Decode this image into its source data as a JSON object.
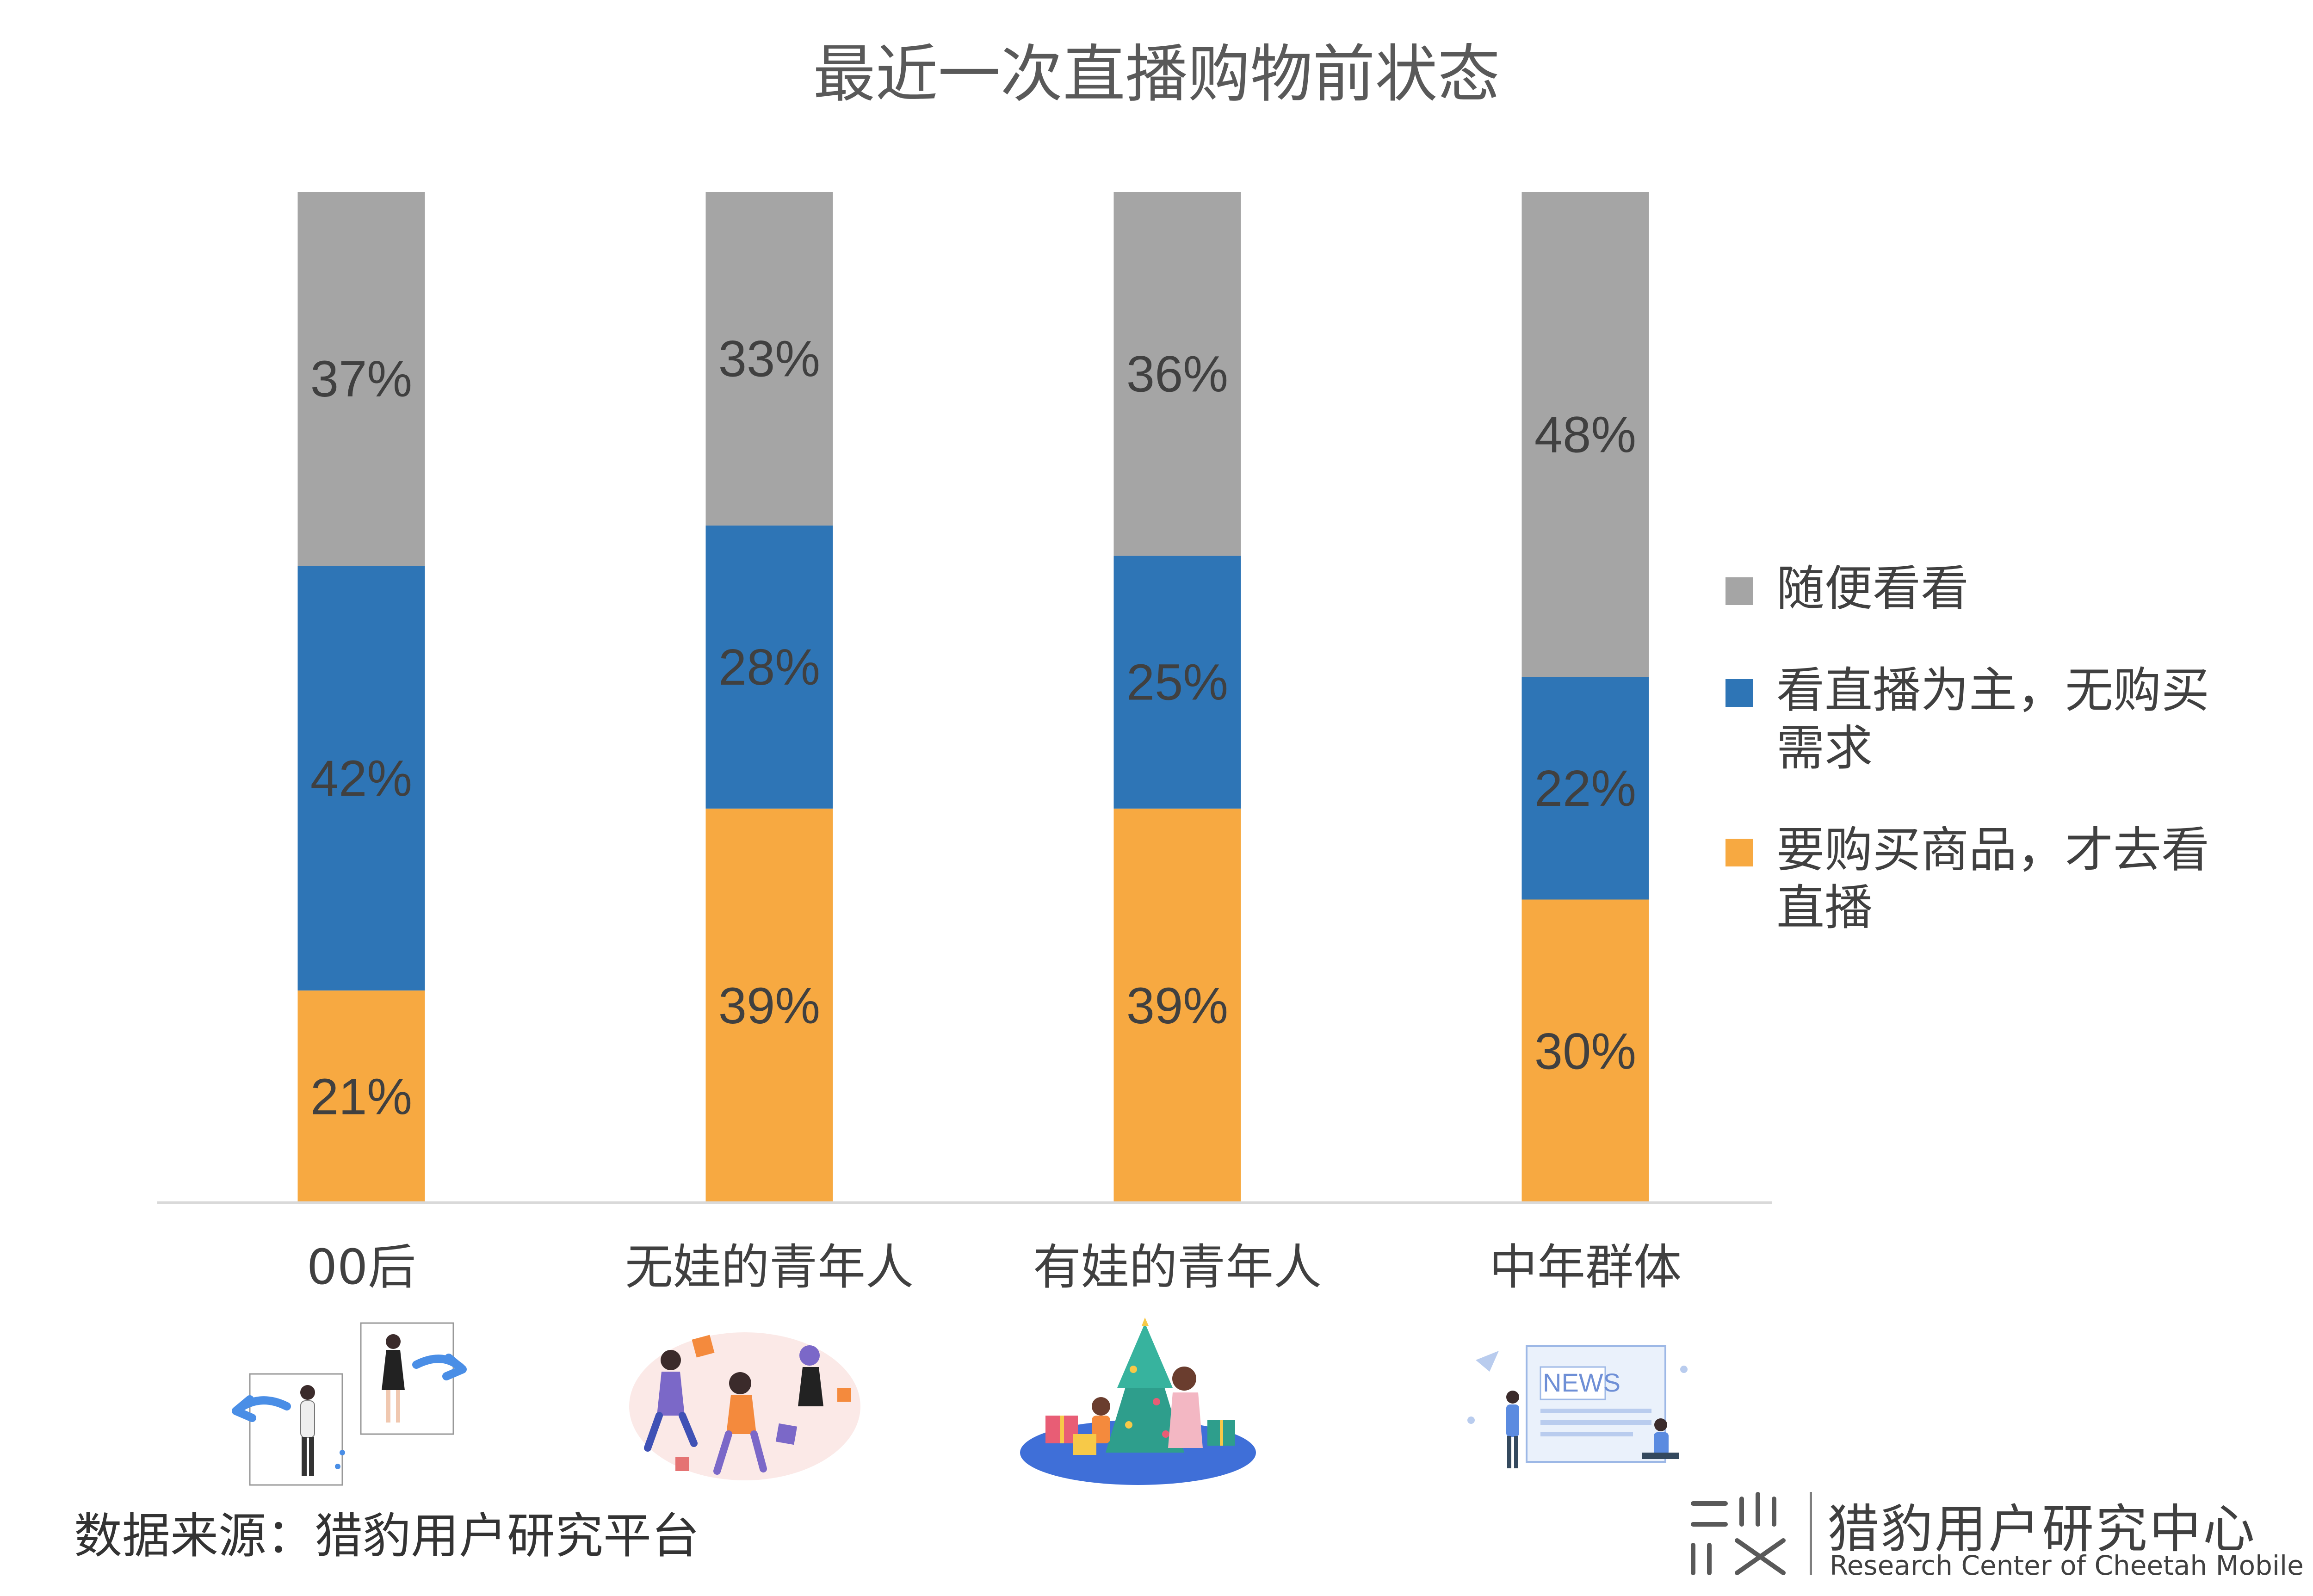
{
  "chart_data": {
    "type": "bar",
    "stacked": true,
    "percent_labels": true,
    "title": "最近一次直播购物前状态",
    "categories": [
      "00后",
      "无娃的青年人",
      "有娃的青年人",
      "中年群体"
    ],
    "series": [
      {
        "name": "要购买商品，才去看直播",
        "values": [
          21,
          39,
          39,
          30
        ],
        "color": "#F7A941"
      },
      {
        "name": "看直播为主，无购买需求",
        "values": [
          42,
          28,
          25,
          22
        ],
        "color": "#2E75B6"
      },
      {
        "name": "随便看看",
        "values": [
          37,
          33,
          36,
          48
        ],
        "color": "#A5A5A5"
      }
    ],
    "ylim": [
      0,
      100
    ],
    "grid": false,
    "legend_position": "right",
    "legend_order": [
      "随便看看",
      "看直播为主，无购买需求",
      "要购买商品，才去看直播"
    ]
  },
  "legend": {
    "items": [
      {
        "label_line1": "随便看看",
        "label_line2": "",
        "color": "#A5A5A5",
        "icon": "square-swatch"
      },
      {
        "label_line1": "看直播为主，无购买",
        "label_line2": "需求",
        "color": "#2E75B6",
        "icon": "square-swatch"
      },
      {
        "label_line1": "要购买商品，才去看",
        "label_line2": "直播",
        "color": "#F7A941",
        "icon": "square-swatch"
      }
    ]
  },
  "footer": {
    "source": "数据来源：猎豹用户研究平台",
    "brand_cn": "猎豹用户研究中心",
    "brand_en": "Research Center of Cheetah Mobile"
  },
  "illustrations": {
    "group_1": "couple-pointing-arrows-illustration",
    "group_2": "celebrating-shoppers-illustration",
    "group_3": "family-christmas-tree-illustration",
    "group_4": "news-reading-illustration",
    "news_sign_text": "NEWS"
  },
  "colors": {
    "axis": "#D9D9D9",
    "label_text": "#404040",
    "title_text": "#595959"
  }
}
